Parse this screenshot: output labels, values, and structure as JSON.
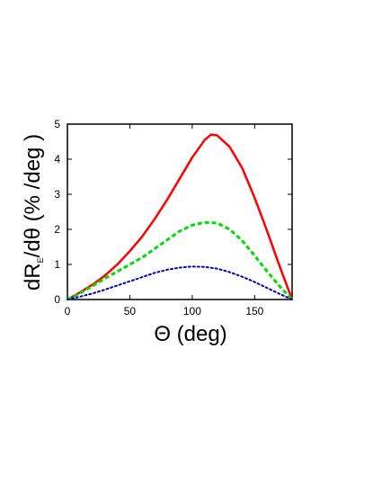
{
  "chart_data": {
    "type": "line",
    "xlabel": "Θ (deg)",
    "ylabel_parts": {
      "main1": "dR",
      "sub": "E",
      "main2": "/dθ (% /deg )"
    },
    "xlim": [
      0,
      180
    ],
    "ylim": [
      0,
      5
    ],
    "x_ticks": [
      0,
      50,
      100,
      150
    ],
    "y_ticks": [
      0,
      1,
      2,
      3,
      4,
      5
    ],
    "grid": false,
    "legend": "none",
    "series": [
      {
        "color": "#ff0000",
        "style": "solid",
        "x": [
          0,
          10,
          20,
          30,
          40,
          50,
          60,
          70,
          80,
          90,
          100,
          110,
          115,
          120,
          130,
          140,
          150,
          160,
          170,
          180
        ],
        "y": [
          0,
          0.2,
          0.42,
          0.68,
          1.0,
          1.38,
          1.8,
          2.3,
          2.85,
          3.45,
          4.05,
          4.55,
          4.7,
          4.68,
          4.35,
          3.75,
          2.9,
          1.95,
          0.95,
          0
        ]
      },
      {
        "color": "#00dd00",
        "style": "dashed",
        "x": [
          0,
          10,
          20,
          30,
          40,
          50,
          60,
          70,
          80,
          90,
          100,
          110,
          120,
          130,
          140,
          150,
          160,
          170,
          180
        ],
        "y": [
          0,
          0.18,
          0.38,
          0.6,
          0.8,
          1.0,
          1.2,
          1.45,
          1.7,
          1.95,
          2.12,
          2.2,
          2.18,
          2.0,
          1.68,
          1.25,
          0.8,
          0.38,
          0
        ]
      },
      {
        "color": "#0000cc",
        "style": "dotted",
        "x": [
          0,
          10,
          20,
          30,
          40,
          50,
          60,
          70,
          80,
          90,
          100,
          110,
          120,
          130,
          140,
          150,
          160,
          170,
          180
        ],
        "y": [
          0,
          0.08,
          0.17,
          0.28,
          0.4,
          0.52,
          0.64,
          0.76,
          0.85,
          0.91,
          0.94,
          0.93,
          0.88,
          0.78,
          0.65,
          0.5,
          0.33,
          0.16,
          0
        ]
      }
    ]
  }
}
